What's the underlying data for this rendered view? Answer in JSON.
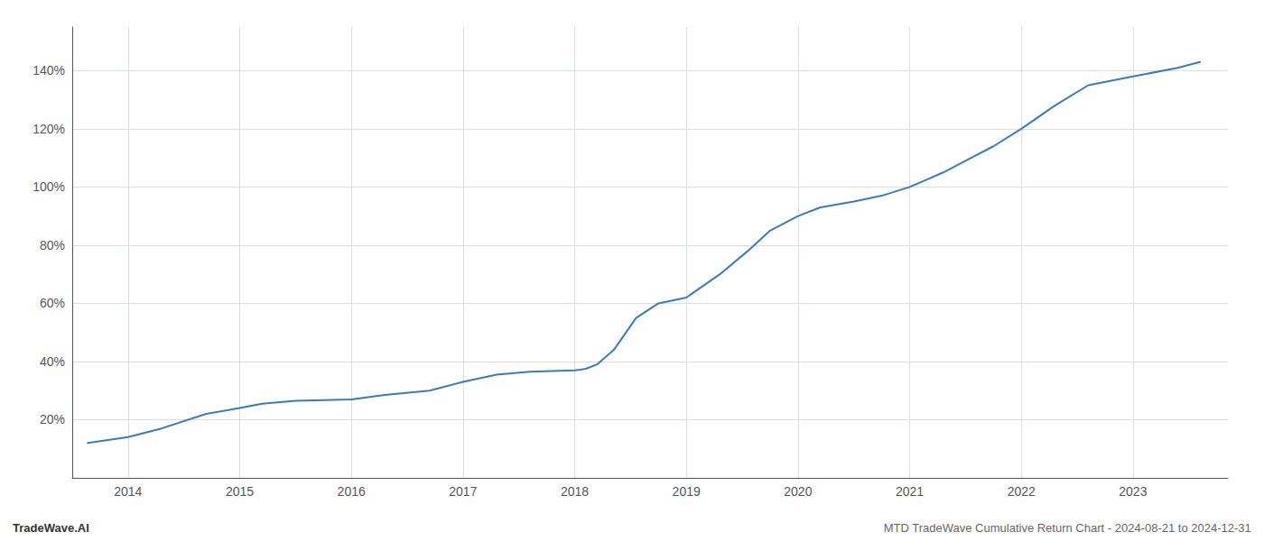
{
  "chart_data": {
    "type": "line",
    "annotations": [
      "TradeWave.AI",
      "MTD TradeWave Cumulative Return Chart - 2024-08-21 to 2024-12-31"
    ],
    "x": [
      2013.64,
      2014.0,
      2014.3,
      2014.7,
      2015.0,
      2015.2,
      2015.5,
      2016.0,
      2016.3,
      2016.7,
      2017.0,
      2017.3,
      2017.6,
      2018.0,
      2018.05,
      2018.1,
      2018.2,
      2018.35,
      2018.55,
      2018.75,
      2019.0,
      2019.3,
      2019.55,
      2019.75,
      2020.0,
      2020.2,
      2020.5,
      2020.75,
      2021.0,
      2021.3,
      2021.55,
      2021.75,
      2022.0,
      2022.3,
      2022.6,
      2023.0,
      2023.4,
      2023.6
    ],
    "values": [
      12,
      14,
      17,
      22,
      24,
      25.5,
      26.5,
      27,
      28.5,
      30,
      33,
      35.5,
      36.5,
      37,
      37.2,
      37.5,
      39,
      44,
      55,
      60,
      62,
      70,
      78,
      85,
      90,
      93,
      95,
      97,
      100,
      105,
      110,
      114,
      120,
      128,
      135,
      138,
      141,
      143
    ],
    "color": "#3a7abf",
    "xlim": [
      2013.5,
      2023.85
    ],
    "xticks": [
      2014,
      2015,
      2016,
      2017,
      2018,
      2019,
      2020,
      2021,
      2022,
      2023
    ],
    "ylim": [
      0,
      155
    ],
    "yticks": [
      {
        "value": 20,
        "label": "20%"
      },
      {
        "value": 40,
        "label": "40%"
      },
      {
        "value": 60,
        "label": "60%"
      },
      {
        "value": 80,
        "label": "80%"
      },
      {
        "value": 100,
        "label": "100%"
      },
      {
        "value": 120,
        "label": "120%"
      },
      {
        "value": 140,
        "label": "140%"
      }
    ],
    "grid": true
  }
}
